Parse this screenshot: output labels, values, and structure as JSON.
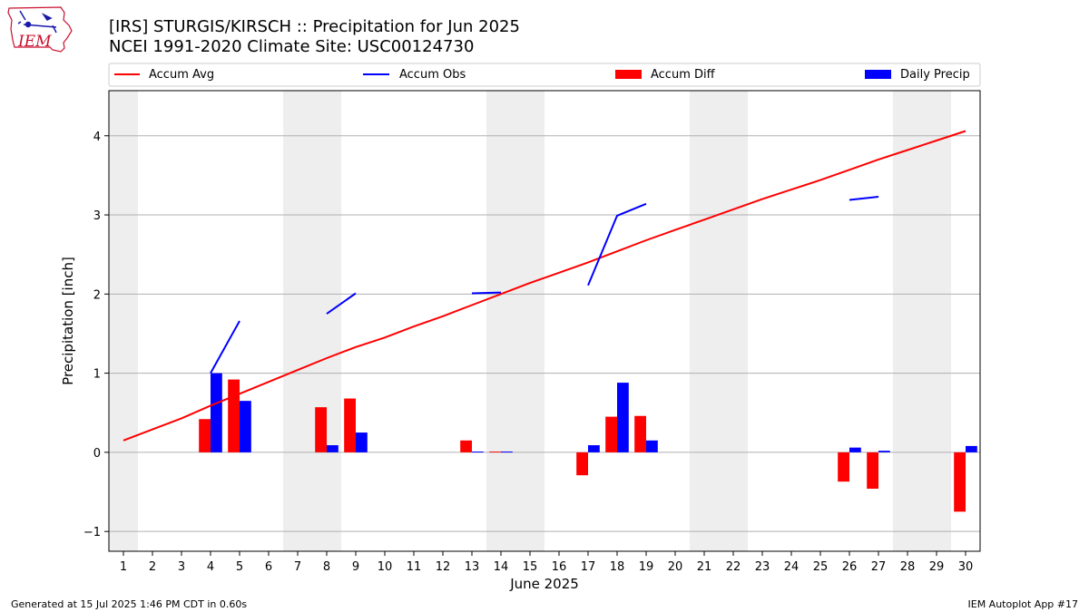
{
  "header": {
    "title_line1": "[IRS] STURGIS/KIRSCH :: Precipitation for Jun 2025",
    "title_line2": "NCEI 1991-2020 Climate Site: USC00124730"
  },
  "logo": {
    "text": "IEM"
  },
  "footer": {
    "generated": "Generated at 15 Jul 2025 1:46 PM CDT in 0.60s",
    "app": "IEM Autoplot App #17"
  },
  "colors": {
    "avg": "#ff0000",
    "obs": "#0000ff",
    "diff": "#ff0000",
    "daily": "#0000ff",
    "weekend": "#eeeeee",
    "grid": "#b0b0b0"
  },
  "chart_data": {
    "type": "bar",
    "title": "[IRS] STURGIS/KIRSCH :: Precipitation for Jun 2025",
    "subtitle": "NCEI 1991-2020 Climate Site: USC00124730",
    "xlabel": "June 2025",
    "ylabel": "Precipitation [inch]",
    "ylim": [
      -1.25,
      4.57
    ],
    "xlim": [
      0.5,
      30.5
    ],
    "yticks": [
      -1,
      0,
      1,
      2,
      3,
      4
    ],
    "ytick_labels": [
      "−1",
      "0",
      "1",
      "2",
      "3",
      "4"
    ],
    "grid": "horizontal",
    "legend_position": "top",
    "legend": [
      "Accum Avg",
      "Accum Obs",
      "Accum Diff",
      "Daily Precip"
    ],
    "days": [
      1,
      2,
      3,
      4,
      5,
      6,
      7,
      8,
      9,
      10,
      11,
      12,
      13,
      14,
      15,
      16,
      17,
      18,
      19,
      20,
      21,
      22,
      23,
      24,
      25,
      26,
      27,
      28,
      29,
      30
    ],
    "day_labels": [
      "1",
      "2",
      "3",
      "4",
      "5",
      "6",
      "7",
      "8",
      "9",
      "10",
      "11",
      "12",
      "13",
      "14",
      "15",
      "16",
      "17",
      "18",
      "19",
      "20",
      "21",
      "22",
      "23",
      "24",
      "25",
      "26",
      "27",
      "28",
      "29",
      "30"
    ],
    "weekend_days": [
      1,
      7,
      8,
      14,
      15,
      21,
      22,
      28,
      29
    ],
    "series": [
      {
        "name": "Accum Avg",
        "kind": "line",
        "values": [
          0.15,
          0.29,
          0.43,
          0.59,
          0.74,
          0.89,
          1.04,
          1.19,
          1.33,
          1.45,
          1.59,
          1.72,
          1.86,
          2.0,
          2.14,
          2.27,
          2.4,
          2.54,
          2.68,
          2.81,
          2.94,
          3.07,
          3.2,
          3.32,
          3.44,
          3.57,
          3.7,
          3.82,
          3.94,
          4.06
        ]
      },
      {
        "name": "Accum Obs",
        "kind": "line",
        "values": [
          null,
          null,
          null,
          1.0,
          1.66,
          null,
          null,
          1.75,
          2.01,
          null,
          null,
          null,
          2.01,
          2.02,
          null,
          null,
          2.11,
          2.99,
          3.14,
          null,
          null,
          null,
          null,
          null,
          null,
          3.19,
          3.23,
          null,
          null,
          null
        ]
      },
      {
        "name": "Accum Diff",
        "kind": "bar",
        "values": [
          0,
          0,
          0,
          0.42,
          0.92,
          0,
          0,
          0.57,
          0.68,
          0,
          0,
          0,
          0.15,
          0.01,
          0,
          0,
          -0.29,
          0.45,
          0.46,
          0,
          0,
          0,
          0,
          0,
          0,
          -0.37,
          -0.46,
          0,
          0,
          -0.75
        ]
      },
      {
        "name": "Daily Precip",
        "kind": "bar",
        "values": [
          0,
          0,
          0,
          1.0,
          0.65,
          0,
          0,
          0.09,
          0.25,
          0,
          0,
          0,
          0.01,
          0.01,
          0,
          0,
          0.09,
          0.88,
          0.15,
          0,
          0,
          0,
          0,
          0,
          0,
          0.06,
          0.02,
          0,
          0,
          0.08
        ]
      }
    ]
  }
}
